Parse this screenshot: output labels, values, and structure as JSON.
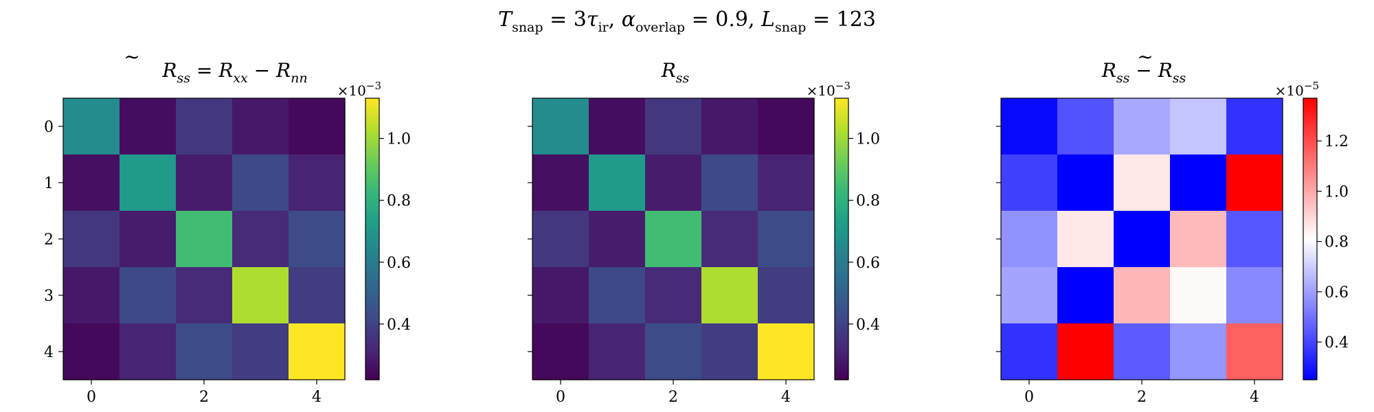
{
  "figure": {
    "suptitle": {
      "t_sym": "T",
      "t_sub": "snap",
      "t_eq": " = 3",
      "tau_sym": "τ",
      "tau_sub": "ir",
      "sep1": ",    ",
      "alpha_sym": "α",
      "alpha_sub": "overlap",
      "alpha_eq": " = 0.9,    ",
      "l_sym": "L",
      "l_sub": "snap",
      "l_eq": " = 123"
    }
  },
  "chart_data": [
    {
      "type": "heatmap",
      "title": {
        "base": "R",
        "tilde": "~",
        "sub1": "ss",
        "eq": " = ",
        "r2": "R",
        "sub2": "xx",
        "minus": " − ",
        "r3": "R",
        "sub3": "nn"
      },
      "colormap": "viridis",
      "x_ticks": [
        "0",
        "2",
        "4"
      ],
      "y_ticks": [
        "0",
        "1",
        "2",
        "3",
        "4"
      ],
      "cbar_ticks": [
        "0.4",
        "0.6",
        "0.8",
        "1.0"
      ],
      "cbar_tick_values": [
        0.4,
        0.6,
        0.8,
        1.0
      ],
      "cbar_scale_base": "×10",
      "cbar_scale_exp": "−3",
      "vmin": 0.22,
      "vmax": 1.13,
      "values": [
        [
          0.66,
          0.25,
          0.37,
          0.28,
          0.24
        ],
        [
          0.26,
          0.71,
          0.29,
          0.42,
          0.31
        ],
        [
          0.37,
          0.29,
          0.85,
          0.33,
          0.43
        ],
        [
          0.28,
          0.42,
          0.33,
          1.02,
          0.38
        ],
        [
          0.24,
          0.31,
          0.43,
          0.38,
          1.13
        ]
      ]
    },
    {
      "type": "heatmap",
      "title": {
        "base": "R",
        "sub1": "ss"
      },
      "colormap": "viridis",
      "x_ticks": [
        "0",
        "2",
        "4"
      ],
      "y_ticks": [
        "0",
        "1",
        "2",
        "3",
        "4"
      ],
      "cbar_ticks": [
        "0.4",
        "0.6",
        "0.8",
        "1.0"
      ],
      "cbar_tick_values": [
        0.4,
        0.6,
        0.8,
        1.0
      ],
      "cbar_scale_base": "×10",
      "cbar_scale_exp": "−3",
      "vmin": 0.22,
      "vmax": 1.13,
      "values": [
        [
          0.66,
          0.25,
          0.37,
          0.28,
          0.24
        ],
        [
          0.26,
          0.71,
          0.29,
          0.42,
          0.31
        ],
        [
          0.37,
          0.29,
          0.85,
          0.33,
          0.43
        ],
        [
          0.28,
          0.42,
          0.33,
          1.02,
          0.38
        ],
        [
          0.24,
          0.31,
          0.43,
          0.38,
          1.13
        ]
      ]
    },
    {
      "type": "heatmap",
      "title": {
        "base": "R",
        "sub1": "ss",
        "minus": " − ",
        "r3": "R",
        "tilde": "~",
        "sub3": "ss"
      },
      "colormap": "bwr",
      "x_ticks": [
        "0",
        "2",
        "4"
      ],
      "y_ticks": [
        "0",
        "1",
        "2",
        "3",
        "4"
      ],
      "cbar_ticks": [
        "0.4",
        "0.6",
        "0.8",
        "1.0",
        "1.2"
      ],
      "cbar_tick_values": [
        0.4,
        0.6,
        0.8,
        1.0,
        1.2
      ],
      "cbar_scale_base": "×10",
      "cbar_scale_exp": "−5",
      "vmin": 0.25,
      "vmax": 1.37,
      "values": [
        [
          0.27,
          0.43,
          0.62,
          0.68,
          0.36
        ],
        [
          0.39,
          0.25,
          0.86,
          0.25,
          1.37
        ],
        [
          0.57,
          0.86,
          0.25,
          0.96,
          0.44
        ],
        [
          0.61,
          0.25,
          0.97,
          0.82,
          0.55
        ],
        [
          0.36,
          1.37,
          0.45,
          0.58,
          1.16
        ]
      ]
    }
  ]
}
